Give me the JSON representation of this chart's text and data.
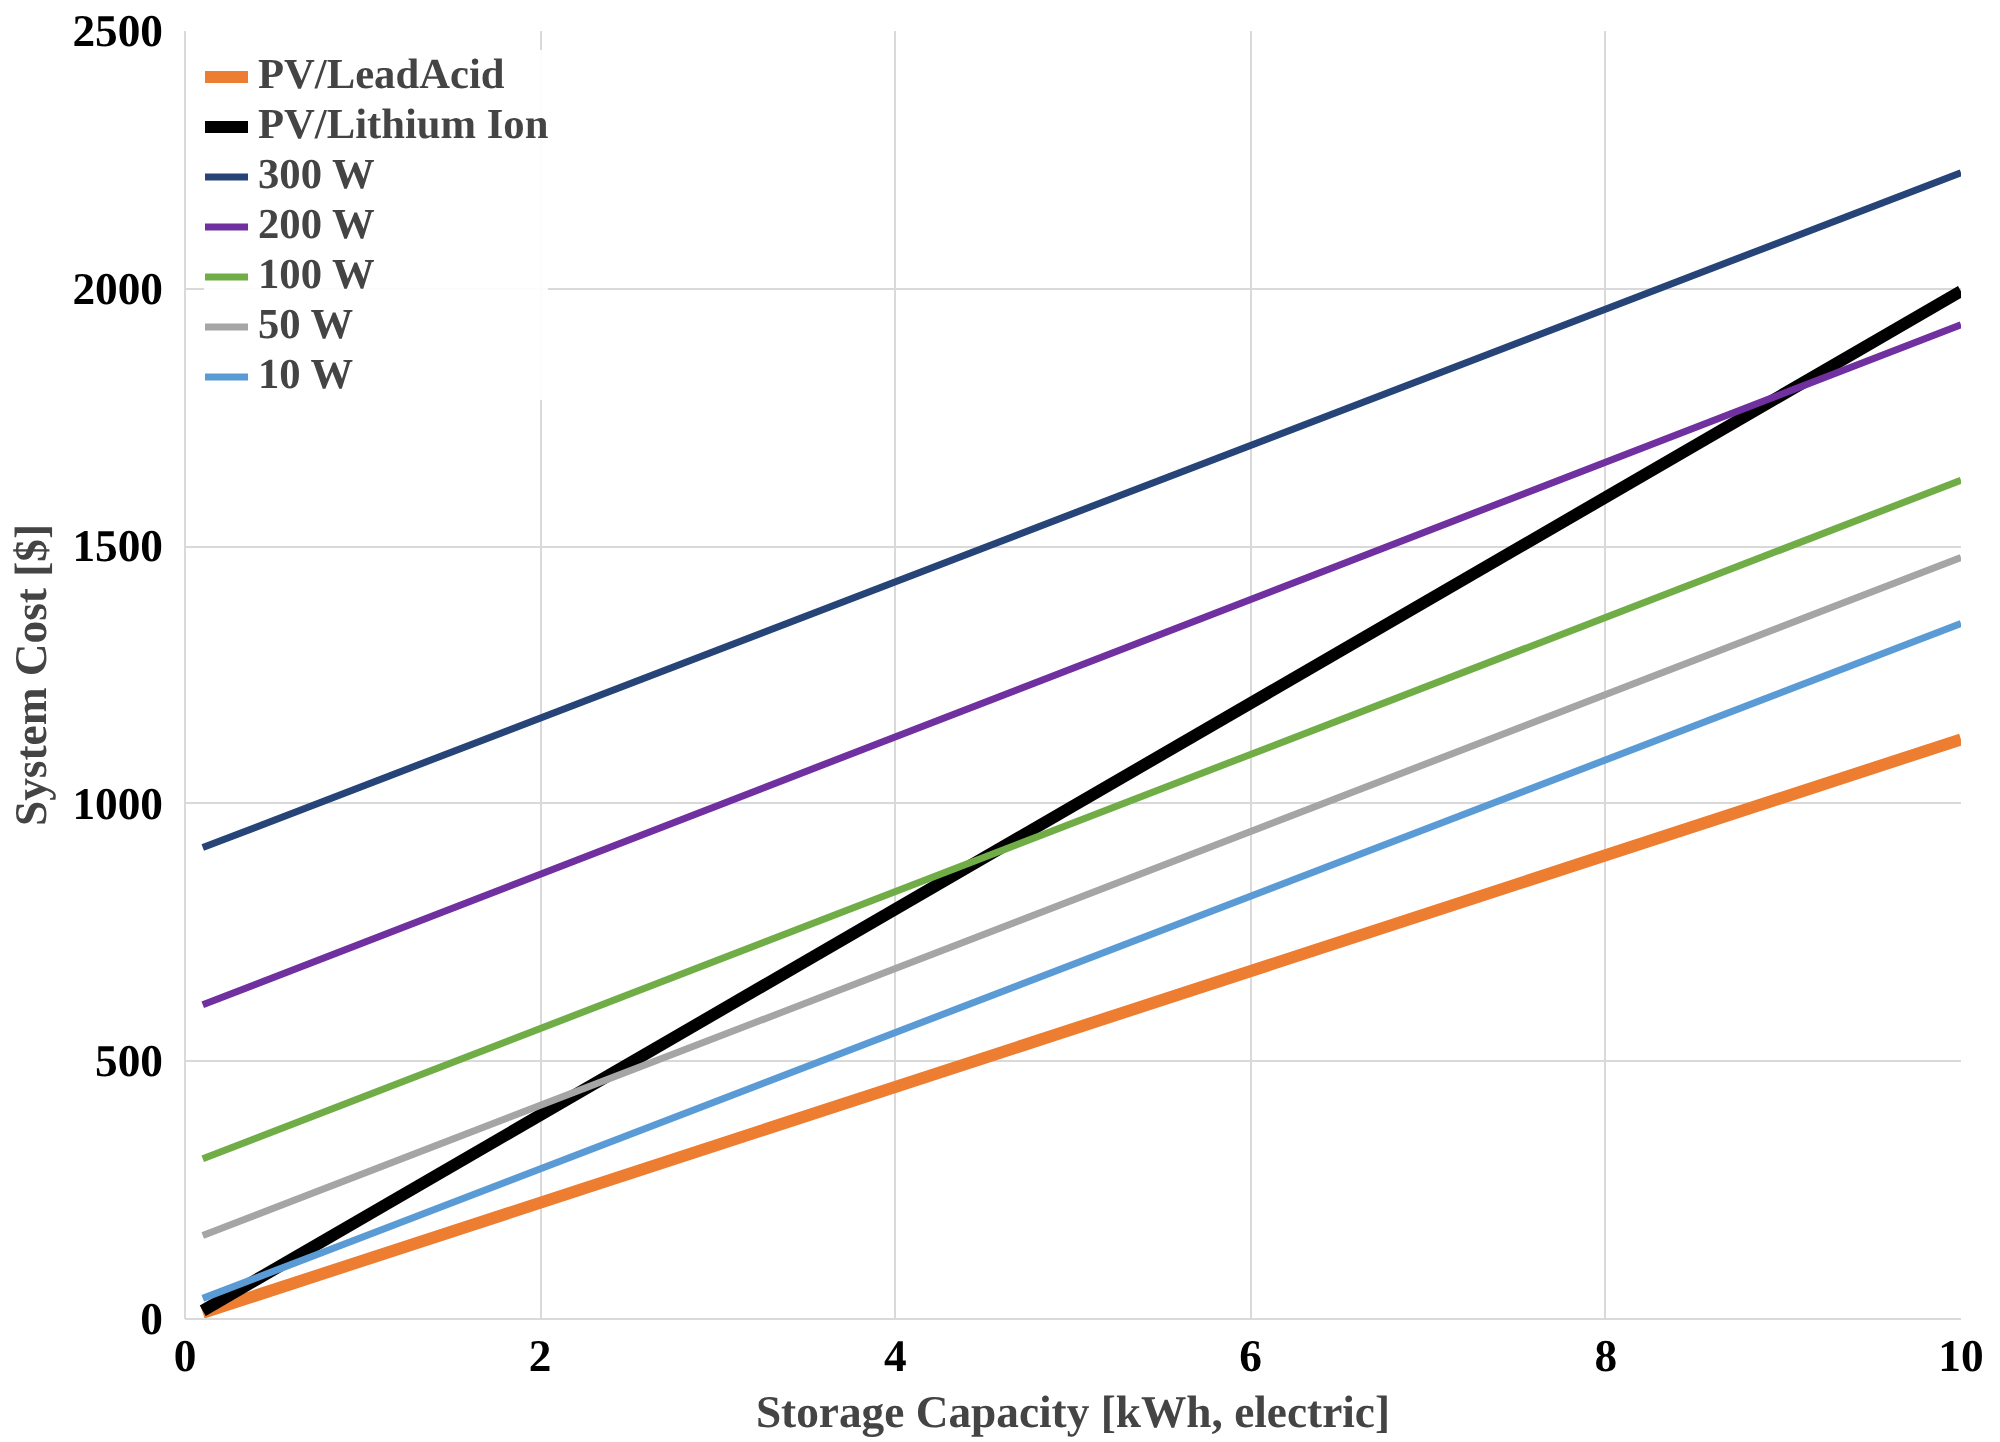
{
  "chart_data": {
    "type": "line",
    "xlabel": "Storage Capacity [kWh, electric]",
    "ylabel": "System Cost [$]",
    "x": [
      0.1,
      10
    ],
    "xlim": [
      0,
      10
    ],
    "xticks": [
      0,
      2,
      4,
      6,
      8,
      10
    ],
    "ylim": [
      0,
      2500
    ],
    "yticks": [
      0,
      500,
      1000,
      1500,
      2000,
      2500
    ],
    "grid": true,
    "legend": "top left",
    "marker": "none",
    "line_style": "solid",
    "series": [
      {
        "name": "PV/LeadAcid",
        "color": "#ed7d31",
        "values": [
          12,
          1125
        ]
      },
      {
        "name": "PV/Lithium Ion",
        "color": "#000000",
        "values": [
          16,
          1995
        ]
      },
      {
        "name": "300 W",
        "color": "#264478",
        "values": [
          915,
          2225
        ]
      },
      {
        "name": "200 W",
        "color": "#7030a0",
        "values": [
          610,
          1930
        ]
      },
      {
        "name": "100 W",
        "color": "#70ad47",
        "values": [
          311,
          1628
        ]
      },
      {
        "name": "50 W",
        "color": "#a5a5a5",
        "values": [
          162,
          1478
        ]
      },
      {
        "name": "10 W",
        "color": "#5b9bd5",
        "values": [
          40,
          1350
        ]
      }
    ]
  }
}
